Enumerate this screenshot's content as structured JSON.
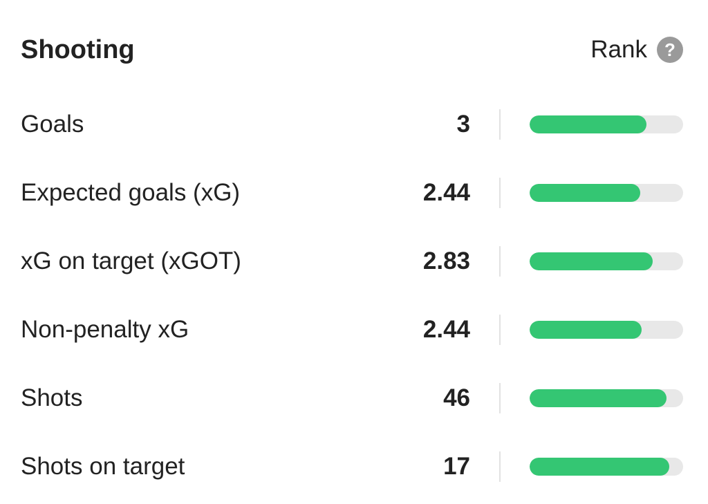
{
  "section": {
    "title": "Shooting",
    "rank_label": "Rank",
    "help_icon": "question-mark-icon",
    "help_symbol": "?"
  },
  "colors": {
    "bar_fill": "#34c673",
    "bar_track": "#e8e8e8",
    "help_icon_bg": "#9a9a9a"
  },
  "stats": [
    {
      "label": "Goals",
      "value": "3",
      "rank_fraction": 0.76
    },
    {
      "label": "Expected goals (xG)",
      "value": "2.44",
      "rank_fraction": 0.72
    },
    {
      "label": "xG on target (xGOT)",
      "value": "2.83",
      "rank_fraction": 0.8
    },
    {
      "label": "Non-penalty xG",
      "value": "2.44",
      "rank_fraction": 0.73
    },
    {
      "label": "Shots",
      "value": "46",
      "rank_fraction": 0.89
    },
    {
      "label": "Shots on target",
      "value": "17",
      "rank_fraction": 0.91
    }
  ]
}
